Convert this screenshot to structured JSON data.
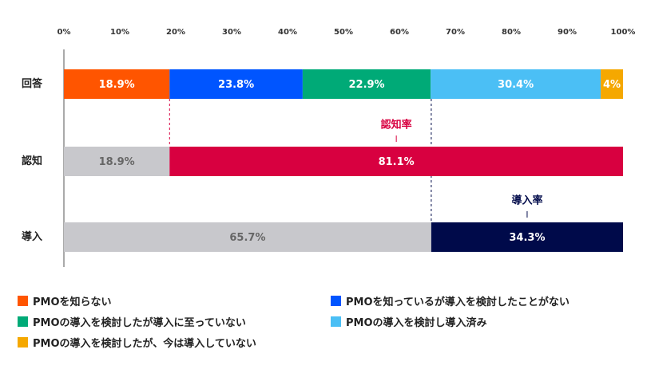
{
  "chart_data": {
    "type": "bar",
    "orientation": "horizontal",
    "stacked": true,
    "xlim": [
      0,
      100
    ],
    "x_ticks": [
      "0%",
      "10%",
      "20%",
      "30%",
      "40%",
      "50%",
      "60%",
      "70%",
      "80%",
      "90%",
      "100%"
    ],
    "categories": [
      "回答",
      "認知",
      "導入"
    ],
    "series": [
      {
        "name": "PMOを知らない",
        "color": "#ff5500",
        "values": [
          18.9,
          null,
          null
        ],
        "labels": [
          "18.9%",
          "",
          ""
        ]
      },
      {
        "name": "PMOを知っているが導入を検討したことがない",
        "color": "#0055ff",
        "values": [
          23.8,
          null,
          null
        ],
        "labels": [
          "23.8%",
          "",
          ""
        ]
      },
      {
        "name": "PMOの導入を検討したが導入に至っていない",
        "color": "#00aa77",
        "values": [
          22.9,
          null,
          null
        ],
        "labels": [
          "22.9%",
          "",
          ""
        ]
      },
      {
        "name": "PMOの導入を検討し導入済み",
        "color": "#4bbff5",
        "values": [
          30.4,
          null,
          null
        ],
        "labels": [
          "30.4%",
          "",
          ""
        ]
      },
      {
        "name": "PMOの導入を検討したが、今は導入していない",
        "color": "#f5a800",
        "values": [
          4.0,
          null,
          null
        ],
        "labels": [
          "4%",
          "",
          ""
        ]
      }
    ],
    "extra_bars": [
      {
        "row": 1,
        "color": "#c8c8cc",
        "text_color": "#666666",
        "values": [
          18.9
        ],
        "labels": [
          "18.9%"
        ]
      },
      {
        "row": 1,
        "color": "#d80040",
        "text_color": "#ffffff",
        "values": [
          81.1
        ],
        "labels": [
          "81.1%"
        ]
      },
      {
        "row": 2,
        "color": "#c8c8cc",
        "text_color": "#666666",
        "values": [
          65.7
        ],
        "labels": [
          "65.7%"
        ]
      },
      {
        "row": 2,
        "color": "#000a4a",
        "text_color": "#ffffff",
        "values": [
          34.3
        ],
        "labels": [
          "34.3%"
        ]
      }
    ],
    "annotations": [
      {
        "text": "認知率",
        "color": "#d80040"
      },
      {
        "text": "導入率",
        "color": "#000a4a"
      }
    ],
    "legend_position": "bottom",
    "grid": false
  }
}
